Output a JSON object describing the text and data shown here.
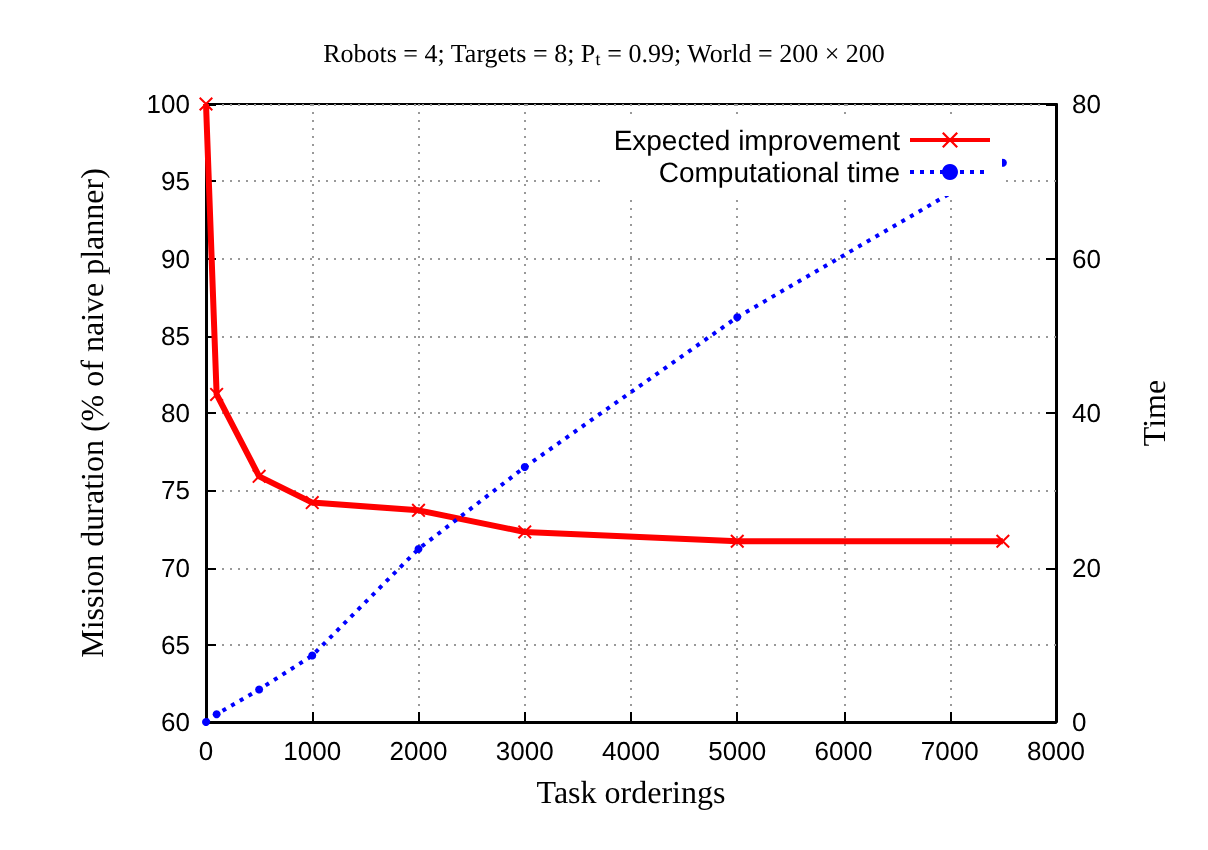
{
  "chart_data": {
    "type": "line",
    "title": "Robots = 4; Targets = 8; P$_{t}$ = 0.99; World = 200 × 200",
    "xlabel": "Task orderings",
    "ylabel": "Mission duration (% of naive planner)",
    "y2label": "Time",
    "x": [
      0,
      100,
      500,
      1000,
      2000,
      3000,
      5000,
      7500
    ],
    "series": [
      {
        "name": "Expected improvement",
        "color": "#ff0000",
        "marker": "cross",
        "line_style": "solid",
        "values": [
          100,
          81.2,
          75.9,
          74.2,
          73.7,
          72.3,
          71.7,
          71.7
        ]
      },
      {
        "name": "Computational time",
        "color": "#0000ff",
        "marker": "circle",
        "line_style": "dotted",
        "axis": "y2",
        "values": [
          0,
          1,
          4.2,
          8.6,
          22.4,
          33,
          52.4,
          72.4
        ]
      }
    ],
    "xlim": [
      0,
      8000
    ],
    "xticks": [
      0,
      1000,
      2000,
      3000,
      4000,
      5000,
      6000,
      7000,
      8000
    ],
    "ylim": [
      60,
      100
    ],
    "yticks": [
      60,
      65,
      70,
      75,
      80,
      85,
      90,
      95,
      100
    ],
    "y2lim": [
      0,
      80
    ],
    "y2ticks": [
      0,
      20,
      40,
      60,
      80
    ],
    "grid": true,
    "legend": "top right"
  }
}
